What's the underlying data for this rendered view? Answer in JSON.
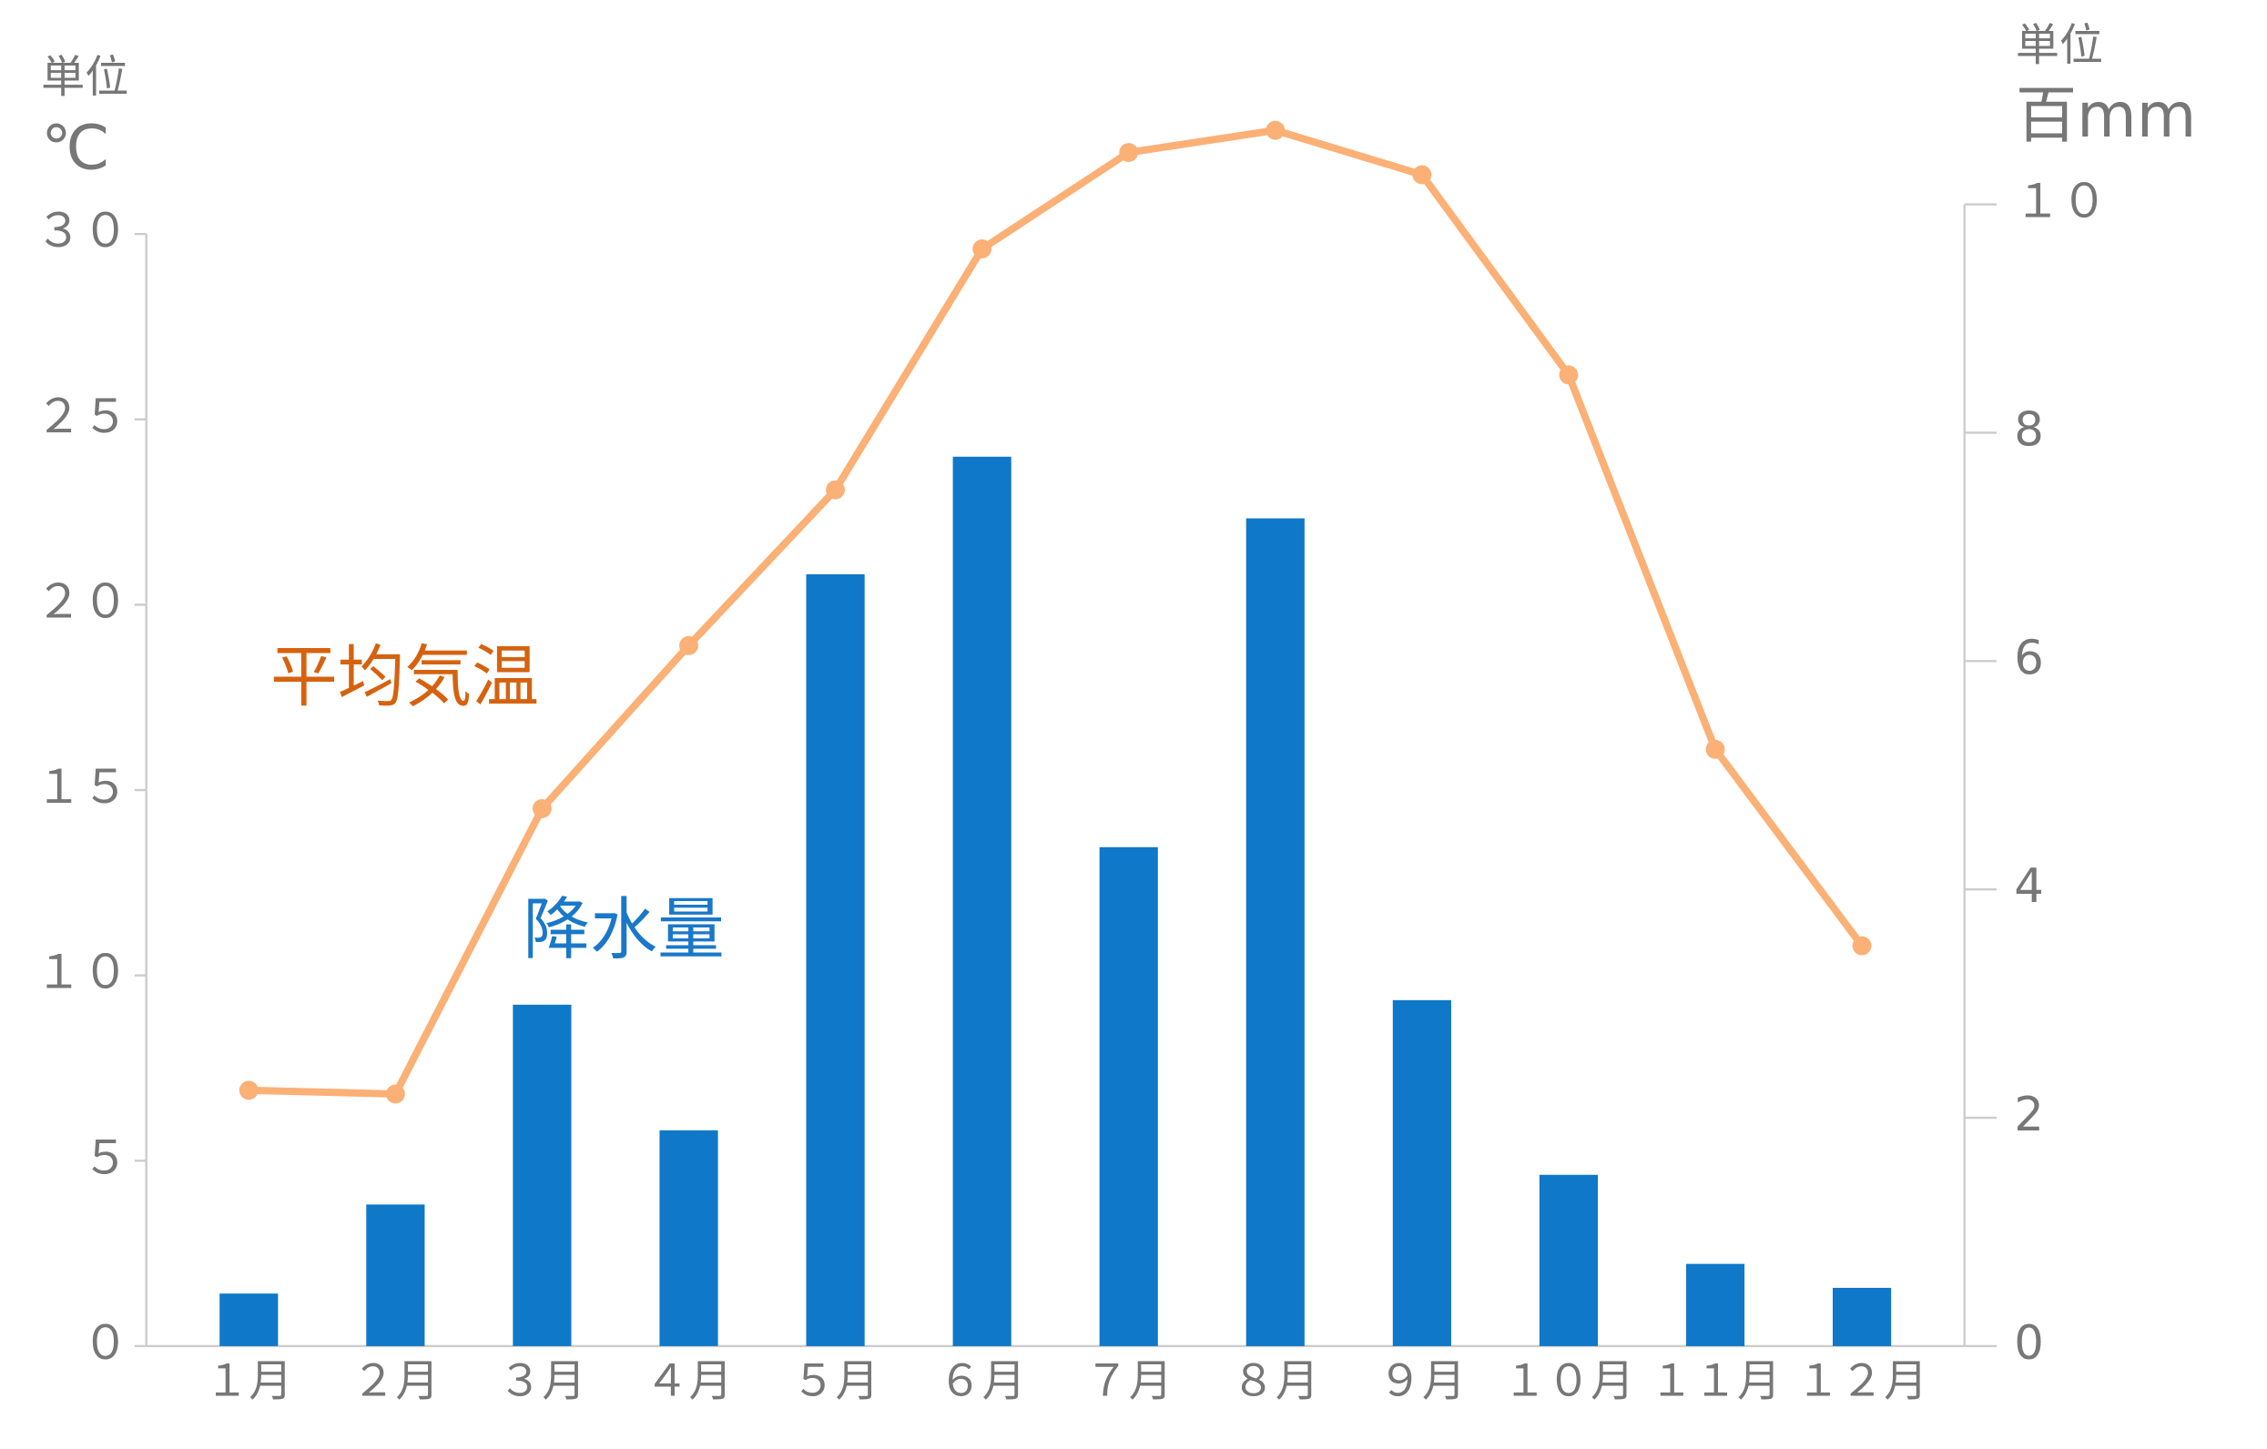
{
  "chart_data": {
    "type": "bar",
    "y_unit_caption": "単位",
    "y_unit": "℃",
    "y2_unit_caption": "単位",
    "y2_unit": "百mm",
    "categories": [
      "１月",
      "２月",
      "３月",
      "４月",
      "５月",
      "６月",
      "７月",
      "８月",
      "９月",
      "１０月",
      "１１月",
      "１２月"
    ],
    "series": [
      {
        "name": "降水量",
        "type": "bar",
        "axis": "y2",
        "color": "#0f78c8",
        "values": [
          0.46,
          1.24,
          2.99,
          1.89,
          6.76,
          7.79,
          4.37,
          7.25,
          3.03,
          1.5,
          0.72,
          0.51
        ]
      },
      {
        "name": "平均気温",
        "type": "line",
        "axis": "y",
        "color": "#fbb076",
        "label_color": "#d6620f",
        "values": [
          6.9,
          6.8,
          14.5,
          18.9,
          23.1,
          29.6,
          32.2,
          32.8,
          31.6,
          26.2,
          16.1,
          10.8
        ]
      }
    ],
    "ylim": [
      0,
      30.8
    ],
    "yticks": [
      {
        "value": 0,
        "label": "０"
      },
      {
        "value": 5,
        "label": "５"
      },
      {
        "value": 10,
        "label": "１０"
      },
      {
        "value": 15,
        "label": "１５"
      },
      {
        "value": 20,
        "label": "２０"
      },
      {
        "value": 25,
        "label": "２５"
      },
      {
        "value": 30,
        "label": "３０"
      }
    ],
    "y2lim": [
      0,
      10
    ],
    "y2ticks": [
      0,
      2,
      4,
      6,
      8,
      {
        "value": 10,
        "label": "１０"
      }
    ],
    "bar_label_color": "#1a78c8"
  }
}
